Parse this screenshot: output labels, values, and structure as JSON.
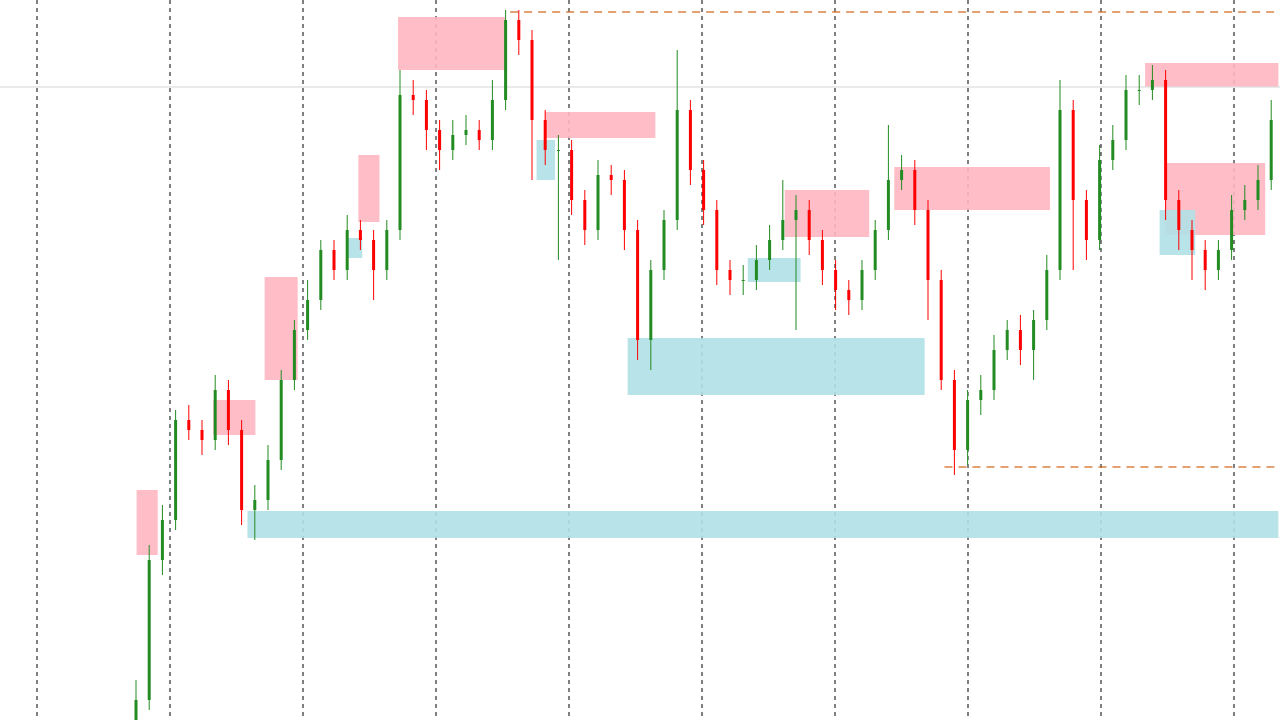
{
  "chart_data": {
    "type": "candlestick",
    "ylim": [
      0,
      720
    ],
    "up_color": "#228b22",
    "down_color": "#ff0000",
    "series": {
      "open": [
        0,
        20,
        160,
        200,
        300,
        290,
        280,
        330,
        290,
        210,
        220,
        260,
        340,
        390,
        420,
        470,
        450,
        490,
        480,
        450,
        490,
        625,
        620,
        590,
        570,
        585,
        590,
        580,
        620,
        700,
        680,
        600,
        570,
        570,
        520,
        490,
        545,
        540,
        490,
        380,
        450,
        500,
        610,
        550,
        510,
        450,
        440,
        440,
        460,
        480,
        500,
        510,
        480,
        450,
        430,
        420,
        450,
        490,
        540,
        550,
        510,
        440,
        340,
        270,
        320,
        330,
        370,
        390,
        370,
        400,
        450,
        610,
        520,
        480,
        560,
        580,
        630,
        630,
        640,
        520,
        490,
        470,
        450,
        470,
        510,
        520,
        540
      ],
      "high": [
        40,
        175,
        215,
        310,
        315,
        300,
        345,
        340,
        300,
        235,
        275,
        350,
        400,
        440,
        480,
        480,
        505,
        500,
        490,
        500,
        650,
        640,
        630,
        600,
        600,
        605,
        600,
        640,
        710,
        710,
        690,
        610,
        585,
        580,
        530,
        560,
        555,
        550,
        500,
        460,
        510,
        670,
        620,
        560,
        520,
        460,
        455,
        475,
        495,
        540,
        525,
        520,
        490,
        460,
        440,
        460,
        500,
        595,
        565,
        560,
        520,
        450,
        350,
        330,
        345,
        385,
        400,
        405,
        410,
        465,
        640,
        620,
        530,
        575,
        595,
        645,
        645,
        655,
        650,
        530,
        500,
        480,
        480,
        525,
        535,
        555,
        620
      ],
      "low": [
        0,
        10,
        145,
        190,
        280,
        265,
        270,
        275,
        195,
        180,
        210,
        250,
        330,
        380,
        410,
        440,
        440,
        470,
        420,
        440,
        480,
        605,
        570,
        550,
        560,
        575,
        570,
        570,
        610,
        665,
        540,
        555,
        460,
        505,
        475,
        480,
        525,
        470,
        360,
        350,
        440,
        490,
        535,
        495,
        435,
        425,
        425,
        430,
        450,
        470,
        390,
        465,
        435,
        410,
        405,
        410,
        440,
        480,
        530,
        495,
        400,
        330,
        245,
        255,
        305,
        320,
        360,
        355,
        340,
        390,
        440,
        450,
        460,
        470,
        550,
        570,
        615,
        620,
        500,
        470,
        440,
        430,
        440,
        460,
        500,
        510,
        530
      ],
      "close": [
        20,
        160,
        200,
        300,
        290,
        280,
        330,
        290,
        210,
        220,
        260,
        340,
        390,
        420,
        470,
        450,
        490,
        480,
        450,
        490,
        625,
        620,
        590,
        570,
        585,
        590,
        580,
        620,
        700,
        680,
        600,
        570,
        570,
        520,
        490,
        545,
        540,
        490,
        380,
        450,
        500,
        610,
        550,
        510,
        450,
        440,
        440,
        460,
        480,
        500,
        510,
        480,
        450,
        430,
        420,
        450,
        490,
        540,
        550,
        510,
        440,
        340,
        270,
        320,
        330,
        370,
        390,
        370,
        400,
        450,
        610,
        520,
        480,
        560,
        580,
        630,
        630,
        640,
        520,
        490,
        470,
        450,
        470,
        510,
        520,
        540,
        600
      ]
    },
    "zones": [
      {
        "kind": "supply",
        "color": "#ffb6c1",
        "start": 0.5,
        "end": 2.1,
        "low": 165,
        "high": 230
      },
      {
        "kind": "supply",
        "color": "#ffb6c1",
        "start": 6.3,
        "end": 9.5,
        "low": 285,
        "high": 320
      },
      {
        "kind": "supply",
        "color": "#ffb6c1",
        "start": 10.2,
        "end": 12.7,
        "low": 340,
        "high": 443
      },
      {
        "kind": "supply",
        "color": "#ffb6c1",
        "start": 17.3,
        "end": 18.9,
        "low": 498,
        "high": 565
      },
      {
        "kind": "supply",
        "color": "#ffb6c1",
        "start": 20.3,
        "end": 28.4,
        "low": 650,
        "high": 703
      },
      {
        "kind": "supply",
        "color": "#ffb6c1",
        "start": 31.4,
        "end": 39.8,
        "low": 582,
        "high": 608
      },
      {
        "kind": "supply",
        "color": "#ffb6c1",
        "start": 49.6,
        "end": 56,
        "low": 483,
        "high": 530
      },
      {
        "kind": "supply",
        "color": "#ffb6c1",
        "start": 57.9,
        "end": 69.7,
        "low": 510,
        "high": 553
      },
      {
        "kind": "supply",
        "color": "#ffb6c1",
        "start": 76.9,
        "end": 87,
        "low": 633,
        "high": 657
      },
      {
        "kind": "supply",
        "color": "#ffb6c1",
        "start": 78.4,
        "end": 86,
        "low": 485,
        "high": 557
      },
      {
        "kind": "demand",
        "color": "#b0e0e6",
        "start": 8.9,
        "end": 87,
        "low": 182,
        "high": 209
      },
      {
        "kind": "demand",
        "color": "#b0e0e6",
        "start": 37.7,
        "end": 60.2,
        "low": 325,
        "high": 382
      },
      {
        "kind": "demand",
        "color": "#b0e0e6",
        "start": 30.8,
        "end": 32.2,
        "low": 540,
        "high": 580
      },
      {
        "kind": "demand",
        "color": "#b0e0e6",
        "start": 46.8,
        "end": 50.8,
        "low": 438,
        "high": 462
      },
      {
        "kind": "demand",
        "color": "#b0e0e6",
        "start": 78,
        "end": 80.7,
        "low": 465,
        "high": 510
      },
      {
        "kind": "demand",
        "color": "#b0e0e6",
        "start": 16.5,
        "end": 17.6,
        "low": 462,
        "high": 482
      }
    ],
    "levels": [
      {
        "value": 708,
        "start": 28.8,
        "color": "#d2691e",
        "dashed": true
      },
      {
        "value": 253,
        "start": 61.7,
        "color": "#d2691e",
        "dashed": true
      },
      {
        "value": 633,
        "start": -10,
        "color": "#dddddd",
        "dashed": false
      }
    ]
  }
}
